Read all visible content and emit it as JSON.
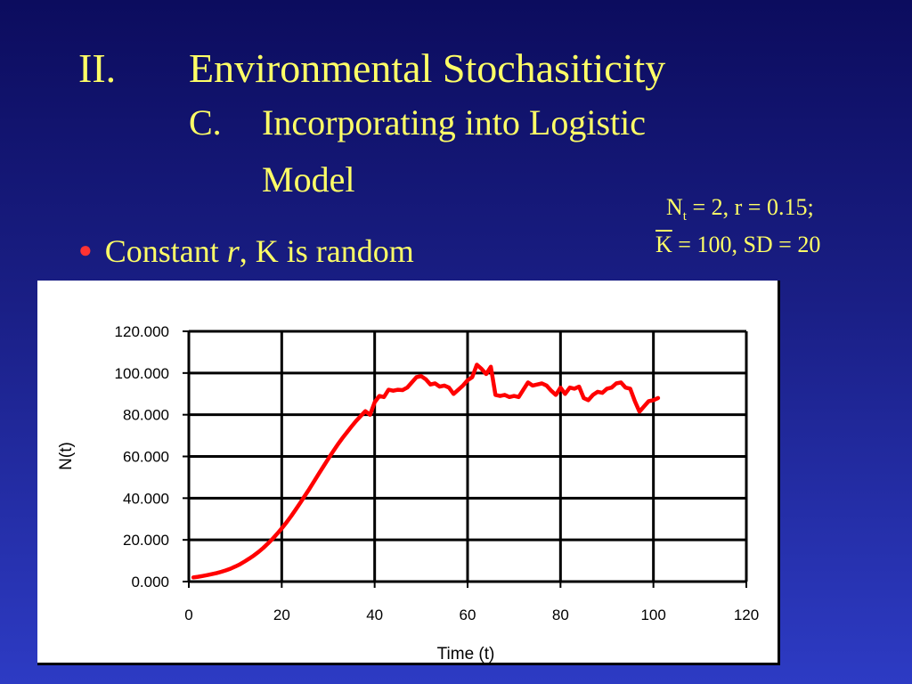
{
  "slide": {
    "title_num": "II.",
    "title_text": "Environmental Stochasiticity",
    "sub_num": "C.",
    "sub_text_1": "Incorporating into Logistic",
    "sub_text_2": "Model",
    "note_line1_pre": "N",
    "note_line1_sub": "t",
    "note_line1_post": " = 2, r = 0.15;",
    "note_line2_k": "K",
    "note_line2_post": " = 100, SD = 20",
    "bullet_pre": "Constant ",
    "bullet_italic": "r",
    "bullet_post": ", K is random",
    "colors": {
      "text": "#ffff66",
      "bullet": "#ff3333",
      "series": "#ff0000"
    }
  },
  "chart_data": {
    "type": "line",
    "xlabel": "Time (t)",
    "ylabel": "N(t)",
    "xlim": [
      0,
      120
    ],
    "ylim": [
      0,
      120
    ],
    "x_ticks": [
      0,
      20,
      40,
      60,
      80,
      100,
      120
    ],
    "x_tick_labels": [
      "0",
      "20",
      "40",
      "60",
      "80",
      "100",
      "120"
    ],
    "y_ticks": [
      0,
      20,
      40,
      60,
      80,
      100,
      120
    ],
    "y_tick_labels": [
      "0.000",
      "20.000",
      "40.000",
      "60.000",
      "80.000",
      "100.000",
      "120.000"
    ],
    "grid": true,
    "series": [
      {
        "x": [
          1,
          2,
          3,
          4,
          5,
          6,
          7,
          8,
          9,
          10,
          11,
          12,
          13,
          14,
          15,
          16,
          17,
          18,
          19,
          20,
          21,
          22,
          23,
          24,
          25,
          26,
          27,
          28,
          29,
          30,
          31,
          32,
          33,
          34,
          35,
          36,
          37,
          38,
          39,
          40,
          41,
          42,
          43,
          44,
          45,
          46,
          47,
          48,
          49,
          50,
          51,
          52,
          53,
          54,
          55,
          56,
          57,
          58,
          59,
          60,
          61,
          62,
          63,
          64,
          65,
          66,
          67,
          68,
          69,
          70,
          71,
          72,
          73,
          74,
          75,
          76,
          77,
          78,
          79,
          80,
          81,
          82,
          83,
          84,
          85,
          86,
          87,
          88,
          89,
          90,
          91,
          92,
          93,
          94,
          95,
          96,
          97,
          98,
          99,
          100,
          101
        ],
        "y": [
          2.0,
          2.3,
          2.7,
          3.1,
          3.6,
          4.1,
          4.7,
          5.4,
          6.2,
          7.2,
          8.3,
          9.6,
          11.0,
          12.5,
          14.2,
          16.1,
          18.2,
          20.4,
          22.9,
          25.5,
          28.3,
          31.3,
          34.5,
          37.8,
          41.2,
          44.6,
          48.2,
          51.8,
          55.3,
          58.8,
          62.2,
          65.5,
          68.6,
          71.5,
          74.3,
          77.0,
          79.4,
          81.7,
          80.0,
          86.0,
          89.0,
          88.5,
          92.0,
          91.5,
          92.0,
          91.8,
          93.0,
          95.5,
          98.0,
          98.5,
          97.0,
          94.5,
          95.0,
          93.5,
          94.0,
          93.0,
          90.0,
          92.0,
          94.0,
          96.5,
          98.0,
          104.0,
          102.0,
          99.5,
          103.0,
          89.5,
          89.0,
          89.5,
          88.5,
          89.0,
          88.5,
          92.0,
          95.5,
          94.0,
          94.5,
          95.0,
          94.0,
          91.5,
          89.5,
          93.0,
          90.0,
          93.0,
          92.5,
          93.5,
          88.0,
          87.0,
          89.5,
          91.0,
          90.5,
          92.5,
          93.0,
          95.0,
          95.5,
          93.0,
          92.5,
          86.5,
          81.5,
          84.0,
          86.5,
          87.0,
          88.0
        ]
      }
    ]
  }
}
